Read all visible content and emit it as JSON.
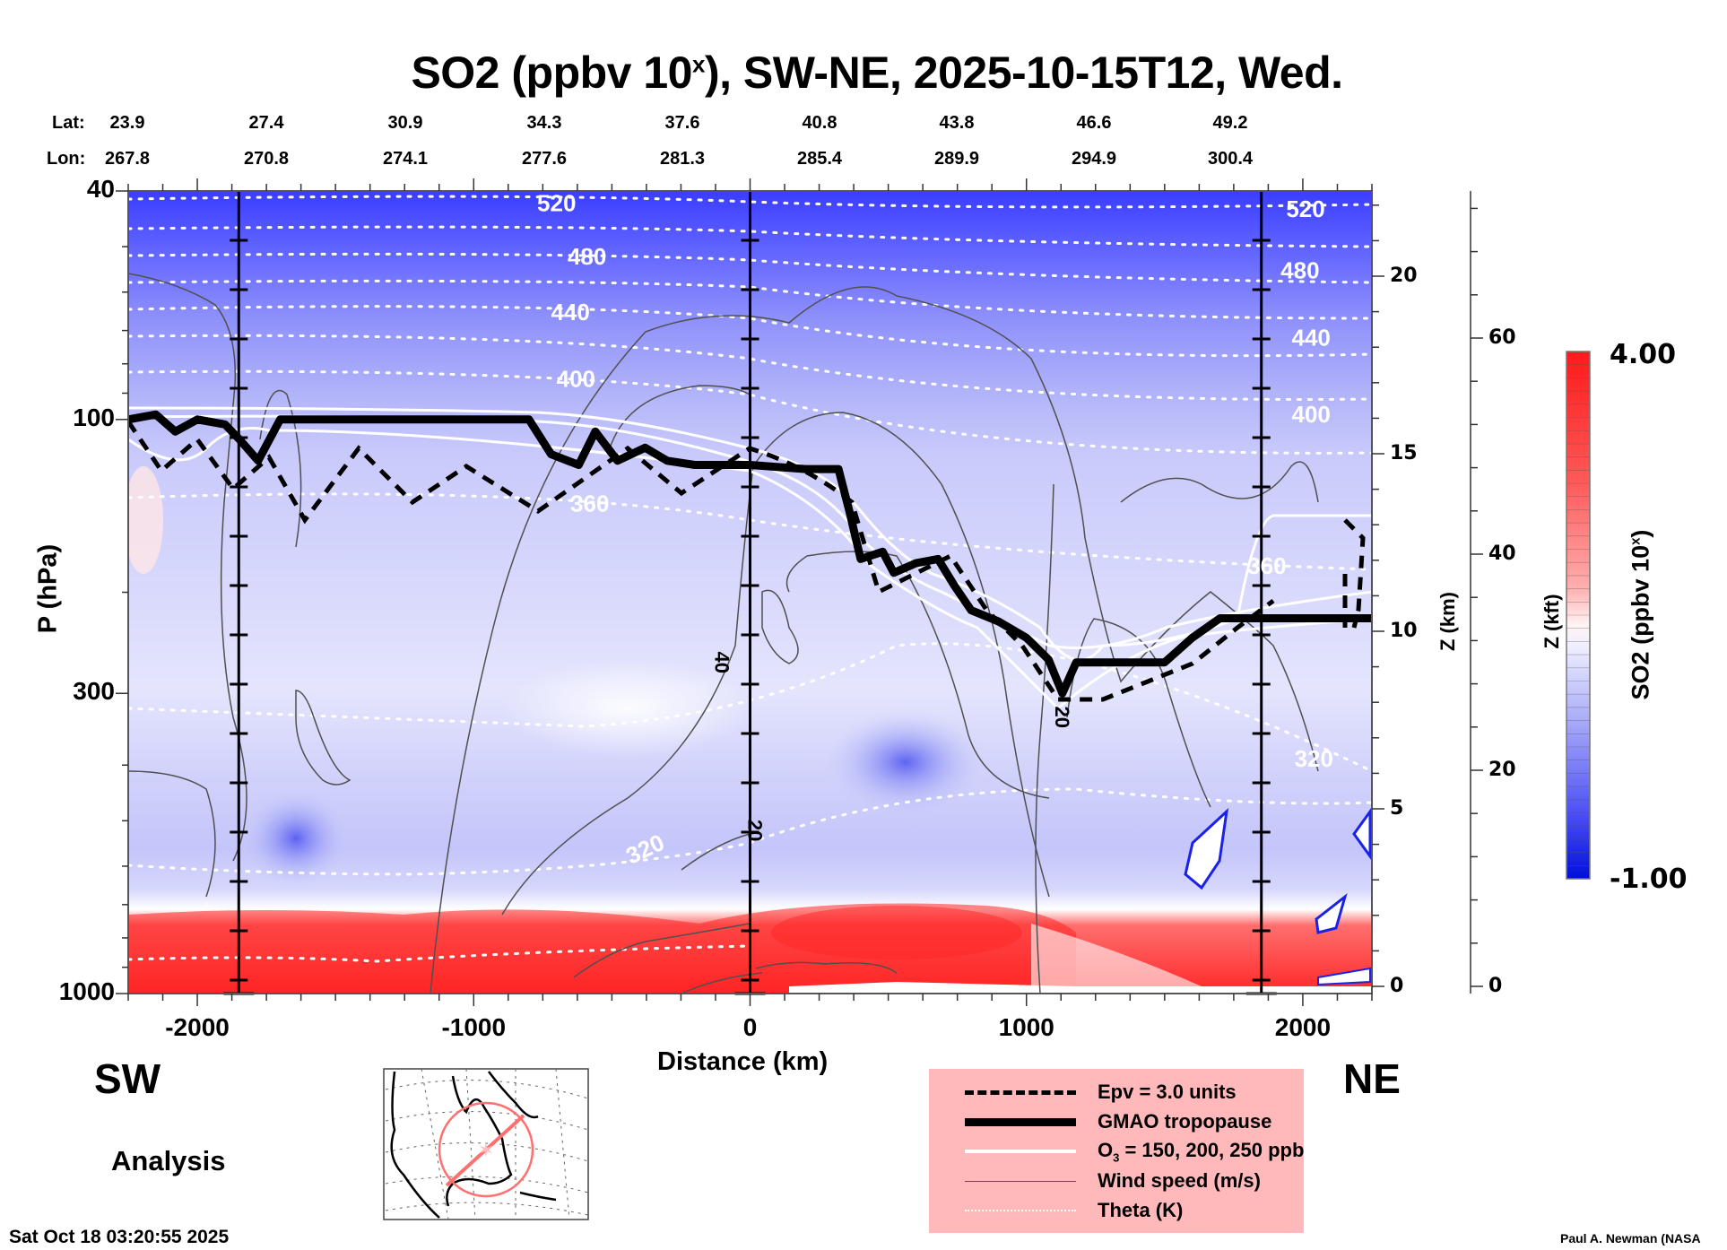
{
  "title": {
    "prefix": "SO2 (ppbv 10",
    "superscript": "x",
    "suffix": "), SW-NE, 2025-10-15T12, Wed."
  },
  "latlon": {
    "lat_label": "Lat:",
    "lon_label": "Lon:",
    "lat": [
      "23.9",
      "27.4",
      "30.9",
      "34.3",
      "37.6",
      "40.8",
      "43.8",
      "46.6",
      "49.2"
    ],
    "lon": [
      "267.8",
      "270.8",
      "274.1",
      "277.6",
      "281.3",
      "285.4",
      "289.9",
      "294.9",
      "300.4"
    ]
  },
  "direction": {
    "left": "SW",
    "right": "NE"
  },
  "run_type": "Analysis",
  "footer": {
    "timestamp": "Sat Oct 18 03:20:55 2025",
    "credit": "Paul A. Newman (NASA"
  },
  "legend": {
    "items": [
      {
        "label": "Epv = 3.0 units",
        "style": "dashed-thick"
      },
      {
        "label": "GMAO tropopause",
        "style": "solid-heavy"
      },
      {
        "label_pre": "O",
        "label_sub": "3",
        "label_post": " = 150, 200, 250 ppb",
        "style": "solid-white"
      },
      {
        "label": "Wind speed (m/s)",
        "style": "solid-thin-gray"
      },
      {
        "label": "Theta (K)",
        "style": "dotted-white"
      }
    ]
  },
  "colors": {
    "legend_bg": "#ffb9ba",
    "high": "#ff1a1a",
    "mid": "#ffffff",
    "low": "#0010e0",
    "map_track": "#ff6b6b"
  },
  "chart_data": {
    "type": "heatmap",
    "title": "SO2 (ppbv 10^x), SW-NE, 2025-10-15T12, Wed.",
    "xlabel": "Distance (km)",
    "ylabel": "P (hPa)",
    "ylabel_right_1": "Z (km)",
    "ylabel_right_2": "Z (kft)",
    "xlim": [
      -2250,
      2250
    ],
    "ylim_hPa": [
      1000,
      40
    ],
    "y_scale": "log",
    "x_ticks": [
      -2000,
      -1000,
      0,
      1000,
      2000
    ],
    "x_tick_labels": [
      "-2000",
      "-1000",
      "0",
      "1000",
      "2000"
    ],
    "y_ticks_hPa": [
      40,
      100,
      300,
      1000
    ],
    "y_tick_labels": [
      "40",
      "100",
      "300",
      "1000"
    ],
    "z_km_ticks": [
      0,
      5,
      10,
      15,
      20
    ],
    "z_kft_ticks": [
      0,
      20,
      40,
      60
    ],
    "vertical_marker_lines_km": [
      -1850,
      0,
      1850
    ],
    "colorbar": {
      "label": "SO2 (ppbv 10^x)",
      "min": -1.0,
      "max": 4.0,
      "min_label": "-1.00",
      "max_label": "4.00",
      "colormap": "blue-white-red"
    },
    "theta_contours_K": [
      320,
      360,
      400,
      440,
      480,
      520
    ],
    "theta_label_positions": [
      {
        "value": "520",
        "x_km": -700,
        "p_hPa": 42
      },
      {
        "value": "480",
        "x_km": -590,
        "p_hPa": 52
      },
      {
        "value": "440",
        "x_km": -650,
        "p_hPa": 65
      },
      {
        "value": "400",
        "x_km": -630,
        "p_hPa": 85
      },
      {
        "value": "360",
        "x_km": -580,
        "p_hPa": 140
      },
      {
        "value": "320",
        "x_km": -380,
        "p_hPa": 560
      },
      {
        "value": "520",
        "x_km": 2010,
        "p_hPa": 43
      },
      {
        "value": "480",
        "x_km": 1990,
        "p_hPa": 55
      },
      {
        "value": "440",
        "x_km": 2030,
        "p_hPa": 72
      },
      {
        "value": "400",
        "x_km": 2030,
        "p_hPa": 98
      },
      {
        "value": "360",
        "x_km": 1870,
        "p_hPa": 180
      },
      {
        "value": "320",
        "x_km": 2040,
        "p_hPa": 390
      }
    ],
    "wind_labels": [
      {
        "value": "40",
        "x_km": -100,
        "p_hPa": 265
      },
      {
        "value": "20",
        "x_km": 1130,
        "p_hPa": 330
      },
      {
        "value": "20",
        "x_km": 20,
        "p_hPa": 520
      }
    ],
    "tropopause_hPa": [
      [
        -2250,
        100
      ],
      [
        -2150,
        98
      ],
      [
        -2080,
        105
      ],
      [
        -2000,
        100
      ],
      [
        -1900,
        102
      ],
      [
        -1850,
        108
      ],
      [
        -1780,
        118
      ],
      [
        -1700,
        100
      ],
      [
        -1600,
        100
      ],
      [
        -800,
        100
      ],
      [
        -720,
        115
      ],
      [
        -620,
        120
      ],
      [
        -560,
        105
      ],
      [
        -480,
        118
      ],
      [
        -380,
        112
      ],
      [
        -300,
        118
      ],
      [
        -200,
        120
      ],
      [
        0,
        120
      ],
      [
        200,
        122
      ],
      [
        320,
        122
      ],
      [
        360,
        145
      ],
      [
        400,
        175
      ],
      [
        480,
        170
      ],
      [
        520,
        185
      ],
      [
        600,
        178
      ],
      [
        680,
        175
      ],
      [
        740,
        195
      ],
      [
        800,
        215
      ],
      [
        900,
        225
      ],
      [
        1000,
        240
      ],
      [
        1080,
        262
      ],
      [
        1130,
        300
      ],
      [
        1180,
        265
      ],
      [
        1260,
        265
      ],
      [
        1500,
        265
      ],
      [
        1600,
        240
      ],
      [
        1700,
        222
      ],
      [
        2250,
        222
      ]
    ],
    "regions": [
      {
        "name": "boundary-layer-high",
        "p_range_hPa": [
          850,
          1000
        ],
        "x_range_km": [
          -2250,
          1150
        ],
        "value_approx": 3.5
      },
      {
        "name": "stratosphere-low",
        "p_range_hPa": [
          40,
          80
        ],
        "x_range_km": [
          -2250,
          2250
        ],
        "value_approx": -0.5
      }
    ]
  },
  "axis_labels": {
    "x": "Distance (km)",
    "y": "P (hPa)",
    "z_km": "Z (km)",
    "z_kft": "Z (kft)",
    "colorbar_pre": "SO2 (ppbv 10",
    "colorbar_sup": "x",
    "colorbar_post": ")"
  }
}
